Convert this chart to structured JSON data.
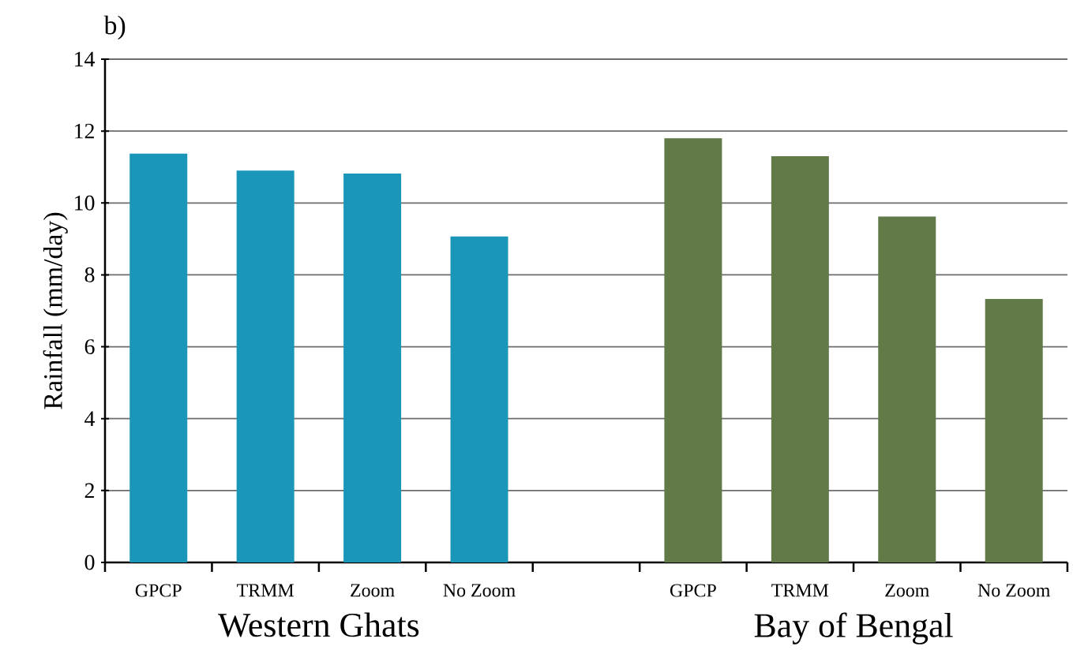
{
  "chart_data": {
    "type": "bar",
    "categories": [
      "GPCP",
      "TRMM",
      "Zoom",
      "No Zoom",
      null,
      "GPCP",
      "TRMM",
      "Zoom",
      "No Zoom"
    ],
    "values": [
      11.37,
      10.9,
      10.82,
      9.07,
      null,
      11.8,
      11.3,
      9.62,
      7.33
    ],
    "colors": [
      "#1a96b8",
      "#1a96b8",
      "#1a96b8",
      "#1a96b8",
      null,
      "#627a48",
      "#627a48",
      "#627a48",
      "#627a48"
    ],
    "ylabel": "Rainfall (mm/day)",
    "ylim": [
      0,
      14
    ],
    "yticks": [
      0,
      2,
      4,
      6,
      8,
      10,
      12,
      14
    ],
    "grid": "y",
    "annotations": [
      "b)",
      "Western Ghats",
      "Bay of Bengal"
    ]
  }
}
